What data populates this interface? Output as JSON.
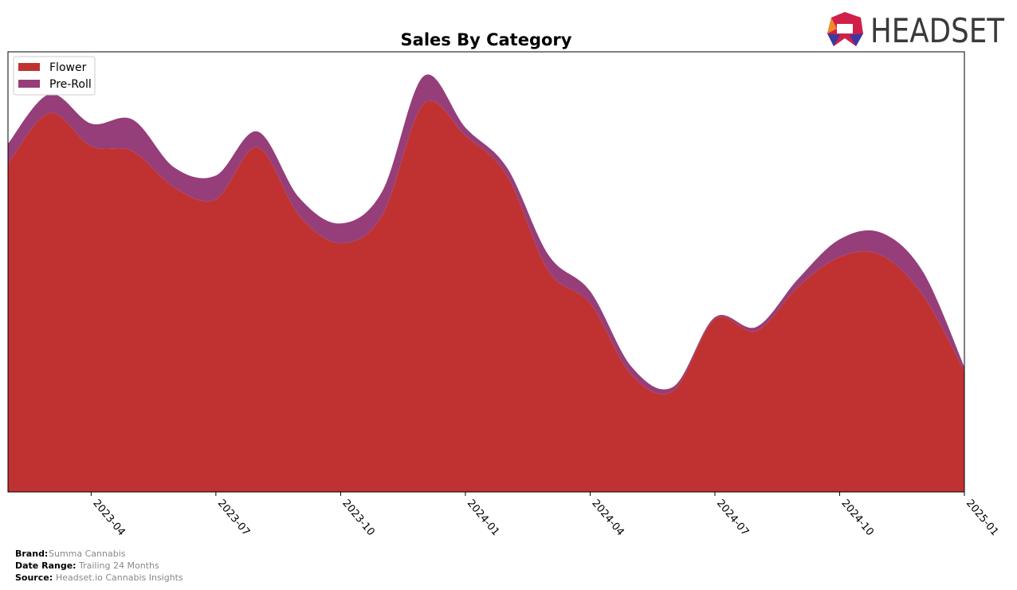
{
  "chart_data": {
    "type": "stacked-area",
    "title": "Sales By Category",
    "x": [
      "2023-02",
      "2023-03",
      "2023-04",
      "2023-05",
      "2023-06",
      "2023-07",
      "2023-08",
      "2023-09",
      "2023-10",
      "2023-11",
      "2023-12",
      "2024-01",
      "2024-02",
      "2024-03",
      "2024-04",
      "2024-05",
      "2024-06",
      "2024-07",
      "2024-08",
      "2024-09",
      "2024-10",
      "2024-11",
      "2024-12",
      "2025-01"
    ],
    "xlim": [
      "2023-02",
      "2025-01"
    ],
    "xticks": [
      "2023-04",
      "2023-07",
      "2023-10",
      "2024-01",
      "2024-04",
      "2024-07",
      "2024-10",
      "2025-01"
    ],
    "ylim": [
      0,
      100
    ],
    "legend": "upper left",
    "series": [
      {
        "name": "Flower",
        "color": "#c03232",
        "values": [
          74.6,
          86.1,
          78.6,
          77.4,
          69.2,
          66.5,
          78.3,
          62.9,
          56.5,
          62.9,
          88.2,
          81.0,
          71.9,
          50.2,
          42.9,
          26.6,
          23.0,
          39.3,
          36.6,
          46.6,
          53.4,
          53.8,
          44.7,
          27.5
        ]
      },
      {
        "name": "Pre-Roll",
        "color": "#963e79",
        "values": [
          4.5,
          4.3,
          5.1,
          7.2,
          4.5,
          5.4,
          3.6,
          4.0,
          4.5,
          5.4,
          6.3,
          1.8,
          1.8,
          3.6,
          2.7,
          1.8,
          0.9,
          0.4,
          0.9,
          1.8,
          4.0,
          5.1,
          5.4,
          0.9
        ]
      }
    ]
  },
  "logo": "HEADSET",
  "footer": {
    "brand_label": "Brand:",
    "brand": "Summa Cannabis",
    "range_label": "Date Range:",
    "range": "Trailing 24 Months",
    "source_label": "Source:",
    "source": "Headset.io Cannabis Insights"
  }
}
